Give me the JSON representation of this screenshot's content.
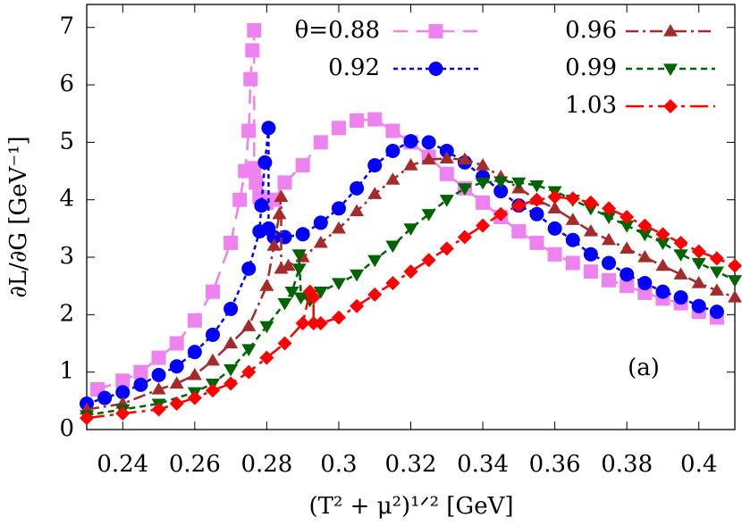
{
  "chart_data": {
    "type": "line",
    "xlabel": "(T² + μ²)¹ᐟ² [GeV]",
    "ylabel": "∂L/∂G [GeV⁻¹]",
    "annotation": "(a)",
    "xlim": [
      0.23,
      0.41
    ],
    "ylim": [
      0,
      7.4
    ],
    "xticks": [
      0.24,
      0.26,
      0.28,
      0.3,
      0.32,
      0.34,
      0.36,
      0.38,
      0.4
    ],
    "yticks": [
      0,
      1,
      2,
      3,
      4,
      5,
      6,
      7
    ],
    "series": [
      {
        "name": "θ=0.88",
        "color": "#ee82ee",
        "marker": "square",
        "x": [
          0.233,
          0.24,
          0.245,
          0.25,
          0.255,
          0.26,
          0.265,
          0.27,
          0.2725,
          0.274,
          0.275,
          0.2755,
          0.276,
          0.2765,
          0.2765,
          0.277,
          0.278,
          0.28,
          0.282,
          0.285,
          0.29,
          0.295,
          0.3,
          0.305,
          0.31,
          0.315,
          0.32,
          0.325,
          0.33,
          0.335,
          0.34,
          0.345,
          0.35,
          0.355,
          0.36,
          0.365,
          0.37,
          0.375,
          0.38,
          0.385,
          0.39,
          0.395,
          0.4,
          0.405
        ],
        "values": [
          0.7,
          0.85,
          1.0,
          1.25,
          1.5,
          1.9,
          2.4,
          3.25,
          4.0,
          4.5,
          5.2,
          6.1,
          6.6,
          6.95,
          4.55,
          4.3,
          4.05,
          3.95,
          4.0,
          4.3,
          4.6,
          5.0,
          5.25,
          5.38,
          5.4,
          5.2,
          5.0,
          4.75,
          4.45,
          4.2,
          3.95,
          3.7,
          3.45,
          3.25,
          3.05,
          2.9,
          2.75,
          2.6,
          2.5,
          2.38,
          2.28,
          2.2,
          2.05,
          1.95
        ]
      },
      {
        "name": "0.92",
        "color": "#0000ff",
        "marker": "circle",
        "x": [
          0.23,
          0.235,
          0.24,
          0.245,
          0.25,
          0.255,
          0.26,
          0.265,
          0.27,
          0.275,
          0.278,
          0.2785,
          0.2795,
          0.2805,
          0.2805,
          0.282,
          0.285,
          0.29,
          0.295,
          0.3,
          0.305,
          0.31,
          0.315,
          0.32,
          0.325,
          0.33,
          0.335,
          0.34,
          0.345,
          0.35,
          0.355,
          0.36,
          0.365,
          0.37,
          0.375,
          0.38,
          0.385,
          0.39,
          0.395,
          0.4,
          0.405
        ],
        "values": [
          0.45,
          0.55,
          0.65,
          0.78,
          0.95,
          1.1,
          1.35,
          1.65,
          2.1,
          2.8,
          3.45,
          3.9,
          4.65,
          5.25,
          3.5,
          3.35,
          3.35,
          3.4,
          3.6,
          3.85,
          4.2,
          4.6,
          4.85,
          5.02,
          5.0,
          4.85,
          4.65,
          4.4,
          4.15,
          3.9,
          3.75,
          3.5,
          3.3,
          3.05,
          2.9,
          2.7,
          2.55,
          2.4,
          2.3,
          2.15,
          2.05
        ]
      },
      {
        "name": "0.96",
        "color": "#a52a2a",
        "marker": "triangle",
        "x": [
          0.23,
          0.24,
          0.25,
          0.255,
          0.26,
          0.265,
          0.27,
          0.275,
          0.28,
          0.282,
          0.2835,
          0.284,
          0.284,
          0.286,
          0.29,
          0.295,
          0.3,
          0.305,
          0.31,
          0.315,
          0.32,
          0.325,
          0.33,
          0.335,
          0.34,
          0.345,
          0.35,
          0.355,
          0.36,
          0.365,
          0.37,
          0.375,
          0.38,
          0.385,
          0.39,
          0.395,
          0.4,
          0.405,
          0.41
        ],
        "values": [
          0.35,
          0.45,
          0.7,
          0.8,
          0.95,
          1.2,
          1.5,
          1.8,
          2.5,
          3.2,
          3.75,
          4.05,
          2.8,
          2.85,
          3.0,
          3.25,
          3.5,
          3.8,
          4.1,
          4.35,
          4.6,
          4.7,
          4.72,
          4.7,
          4.6,
          4.4,
          4.2,
          4.0,
          3.85,
          3.65,
          3.45,
          3.3,
          3.15,
          3.0,
          2.85,
          2.7,
          2.55,
          2.42,
          2.3
        ]
      },
      {
        "name": "0.99",
        "color": "#006400",
        "marker": "triangle-down",
        "x": [
          0.23,
          0.24,
          0.25,
          0.26,
          0.265,
          0.27,
          0.275,
          0.28,
          0.285,
          0.287,
          0.289,
          0.289,
          0.2895,
          0.292,
          0.295,
          0.3,
          0.305,
          0.31,
          0.315,
          0.32,
          0.325,
          0.33,
          0.335,
          0.34,
          0.345,
          0.35,
          0.355,
          0.36,
          0.365,
          0.37,
          0.375,
          0.38,
          0.385,
          0.39,
          0.395,
          0.4,
          0.405,
          0.41
        ],
        "values": [
          0.25,
          0.35,
          0.45,
          0.65,
          0.8,
          1.05,
          1.4,
          1.8,
          2.2,
          2.4,
          2.8,
          3.05,
          2.3,
          2.25,
          2.4,
          2.55,
          2.7,
          2.95,
          3.2,
          3.5,
          3.75,
          4.0,
          4.2,
          4.3,
          4.32,
          4.3,
          4.25,
          4.15,
          4.0,
          3.85,
          3.7,
          3.55,
          3.4,
          3.25,
          3.05,
          2.9,
          2.75,
          2.6
        ]
      },
      {
        "name": "1.03",
        "color": "#ff0000",
        "marker": "diamond",
        "x": [
          0.23,
          0.24,
          0.25,
          0.255,
          0.26,
          0.265,
          0.27,
          0.275,
          0.28,
          0.285,
          0.29,
          0.292,
          0.293,
          0.293,
          0.295,
          0.3,
          0.305,
          0.31,
          0.315,
          0.32,
          0.325,
          0.33,
          0.335,
          0.34,
          0.345,
          0.35,
          0.355,
          0.36,
          0.365,
          0.37,
          0.375,
          0.38,
          0.385,
          0.39,
          0.395,
          0.4,
          0.405,
          0.41
        ],
        "values": [
          0.2,
          0.28,
          0.35,
          0.45,
          0.55,
          0.68,
          0.8,
          1.0,
          1.25,
          1.5,
          1.85,
          2.4,
          2.3,
          1.85,
          1.85,
          1.95,
          2.15,
          2.35,
          2.55,
          2.75,
          2.95,
          3.15,
          3.35,
          3.55,
          3.75,
          3.9,
          4.0,
          4.05,
          4.02,
          3.95,
          3.85,
          3.7,
          3.55,
          3.4,
          3.25,
          3.1,
          2.98,
          2.85
        ]
      }
    ]
  }
}
